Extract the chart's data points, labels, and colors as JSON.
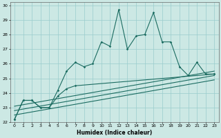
{
  "xlabel": "Humidex (Indice chaleur)",
  "xlim": [
    -0.5,
    23.5
  ],
  "ylim": [
    22,
    30.2
  ],
  "yticks": [
    22,
    23,
    24,
    25,
    26,
    27,
    28,
    29,
    30
  ],
  "xticks": [
    0,
    1,
    2,
    3,
    4,
    5,
    6,
    7,
    8,
    9,
    10,
    11,
    12,
    13,
    14,
    15,
    16,
    17,
    18,
    19,
    20,
    21,
    22,
    23
  ],
  "bg_color": "#cce8e4",
  "line_color": "#1a6b60",
  "grid_color": "#99cccc",
  "series1_x": [
    0,
    1,
    2,
    3,
    4,
    5,
    6,
    7,
    8,
    9,
    10,
    11,
    12,
    13,
    14,
    15,
    16,
    17,
    18,
    19,
    20,
    21,
    22,
    23
  ],
  "series1_y": [
    22.2,
    23.5,
    23.5,
    23.0,
    23.0,
    24.2,
    25.5,
    26.1,
    25.8,
    26.0,
    27.5,
    27.2,
    29.7,
    27.0,
    27.9,
    28.0,
    29.5,
    27.5,
    27.5,
    25.8,
    25.2,
    26.1,
    25.3,
    25.3
  ],
  "series2_x": [
    0,
    1,
    2,
    3,
    4,
    5,
    6,
    7,
    23
  ],
  "series2_y": [
    22.2,
    23.5,
    23.5,
    23.0,
    23.0,
    23.8,
    24.3,
    24.5,
    25.3
  ],
  "trend1_x": [
    0,
    23
  ],
  "trend1_y": [
    23.1,
    25.5
  ],
  "trend2_x": [
    0,
    23
  ],
  "trend2_y": [
    22.8,
    25.2
  ],
  "trend3_x": [
    0,
    23
  ],
  "trend3_y": [
    22.5,
    24.9
  ]
}
